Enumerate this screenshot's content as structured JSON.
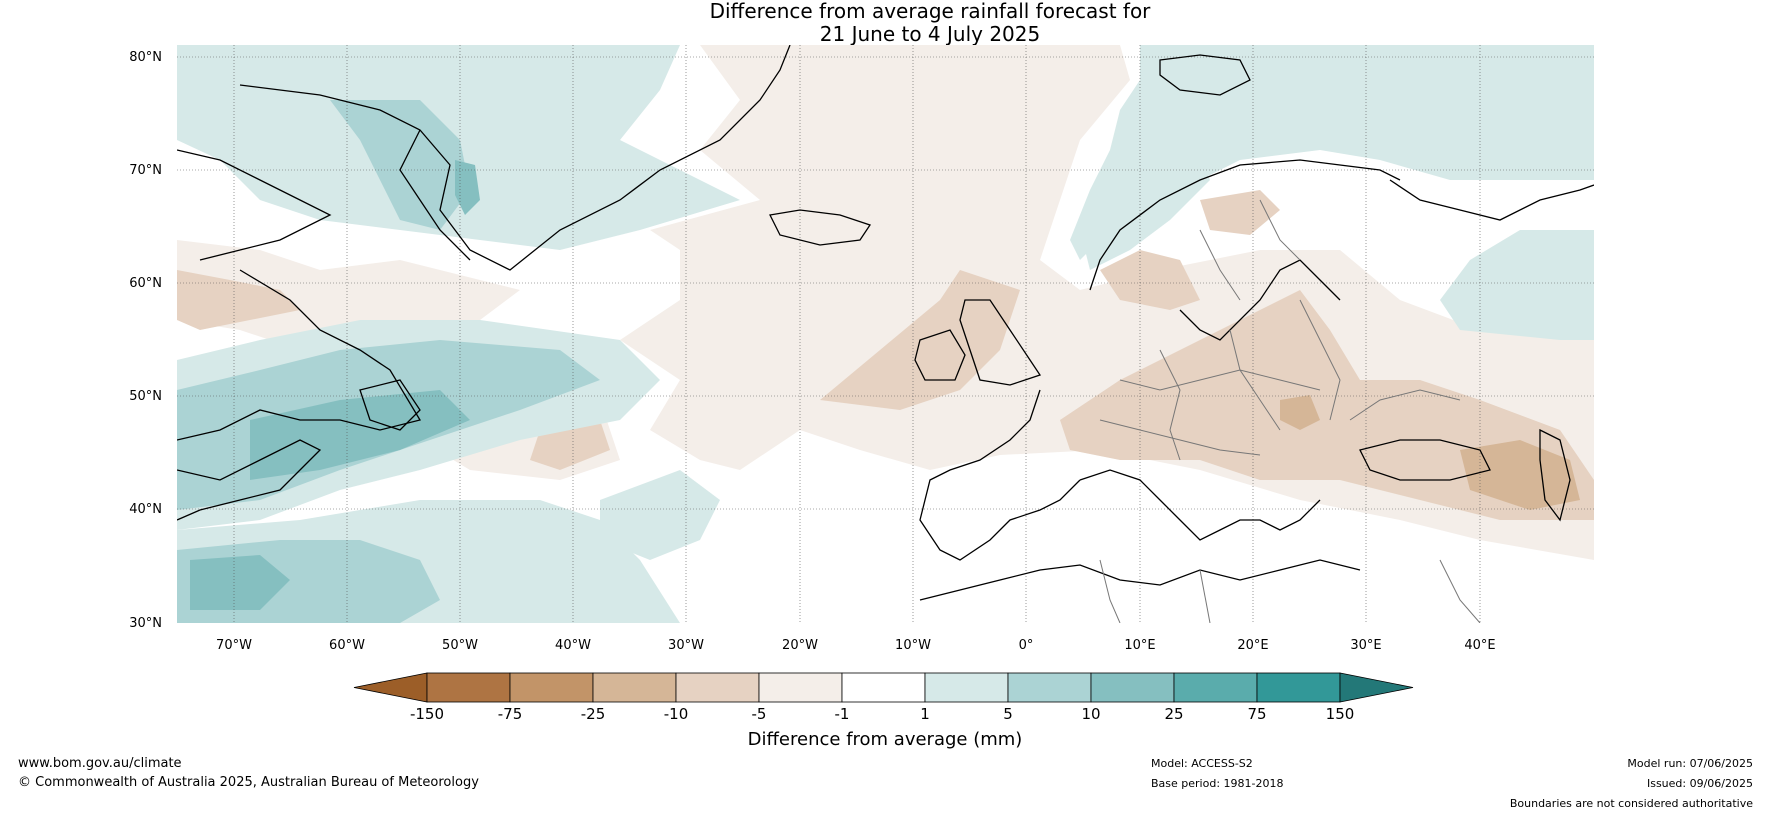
{
  "title": {
    "line1": "Difference from average rainfall forecast for",
    "line2": "21 June to 4 July 2025"
  },
  "map": {
    "lat_labels": [
      "80°N",
      "70°N",
      "60°N",
      "50°N",
      "40°N",
      "30°N"
    ],
    "lon_labels": [
      "70°W",
      "60°W",
      "50°W",
      "40°W",
      "30°W",
      "20°W",
      "10°W",
      "0°",
      "10°E",
      "20°E",
      "30°E",
      "40°E"
    ],
    "lat_range": [
      30,
      80
    ],
    "lon_range": [
      -75,
      50
    ]
  },
  "colorbar": {
    "label": "Difference from average (mm)",
    "ticks": [
      "-150",
      "-75",
      "-25",
      "-10",
      "-5",
      "-1",
      "1",
      "5",
      "10",
      "25",
      "75",
      "150"
    ],
    "colors": [
      "#9c5e28",
      "#ae7443",
      "#c29468",
      "#d5b697",
      "#e6d2c2",
      "#f4eee9",
      "#ffffff",
      "#d6e9e8",
      "#abd3d4",
      "#85bfc0",
      "#5aacac",
      "#329898",
      "#237878"
    ]
  },
  "footer": {
    "website": "www.bom.gov.au/climate",
    "copyright": "© Commonwealth of Australia 2025, Australian Bureau of Meteorology",
    "model": "Model: ACCESS-S2",
    "base_period": "Base period: 1981-2018",
    "model_run": "Model run: 07/06/2025",
    "issued": "Issued: 09/06/2025",
    "disclaimer": "Boundaries are not considered authoritative"
  }
}
